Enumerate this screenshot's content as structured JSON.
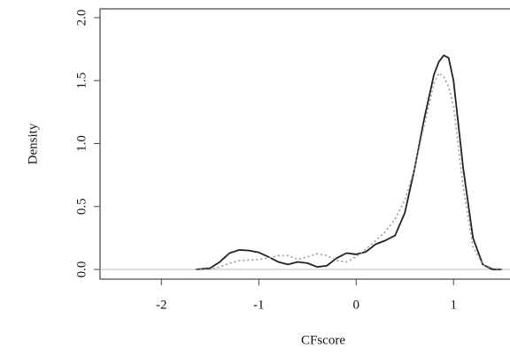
{
  "chart_data": {
    "type": "line",
    "xlabel": "CFscore",
    "ylabel": "Density",
    "x": [
      -1.65,
      -1.5,
      -1.4,
      -1.3,
      -1.2,
      -1.1,
      -1.0,
      -0.9,
      -0.8,
      -0.7,
      -0.6,
      -0.5,
      -0.4,
      -0.3,
      -0.2,
      -0.1,
      0,
      0.1,
      0.2,
      0.3,
      0.4,
      0.5,
      0.6,
      0.7,
      0.8,
      0.85,
      0.9,
      0.95,
      1.0,
      1.1,
      1.2,
      1.3,
      1.4,
      1.5
    ],
    "series": [
      {
        "color": "#222222",
        "linestyle": "solid",
        "values": [
          0,
          0.01,
          0.06,
          0.13,
          0.155,
          0.15,
          0.135,
          0.1,
          0.06,
          0.04,
          0.06,
          0.05,
          0.02,
          0.03,
          0.09,
          0.13,
          0.12,
          0.14,
          0.2,
          0.23,
          0.27,
          0.45,
          0.8,
          1.2,
          1.55,
          1.65,
          1.7,
          1.68,
          1.5,
          0.8,
          0.25,
          0.04,
          0,
          0
        ]
      },
      {
        "color": "#999999",
        "linestyle": "dotted",
        "values": [
          0,
          0,
          0.02,
          0.05,
          0.07,
          0.075,
          0.08,
          0.09,
          0.11,
          0.11,
          0.08,
          0.1,
          0.125,
          0.11,
          0.07,
          0.06,
          0.1,
          0.16,
          0.23,
          0.3,
          0.4,
          0.55,
          0.8,
          1.15,
          1.48,
          1.56,
          1.53,
          1.45,
          1.3,
          0.65,
          0.18,
          0.04,
          0.01,
          0
        ]
      }
    ],
    "xlim": [
      -2.63,
      1.58
    ],
    "ylim": [
      -0.077,
      2.07
    ],
    "xticks": [
      -2,
      -1,
      0,
      1
    ],
    "yticks": [
      {
        "value": 0,
        "label": "0.0"
      },
      {
        "value": 0.5,
        "label": "0.5"
      },
      {
        "value": 1,
        "label": "1.0"
      },
      {
        "value": 1.5,
        "label": "1.5"
      },
      {
        "value": 2,
        "label": "2.0"
      }
    ],
    "zero_line": true
  }
}
